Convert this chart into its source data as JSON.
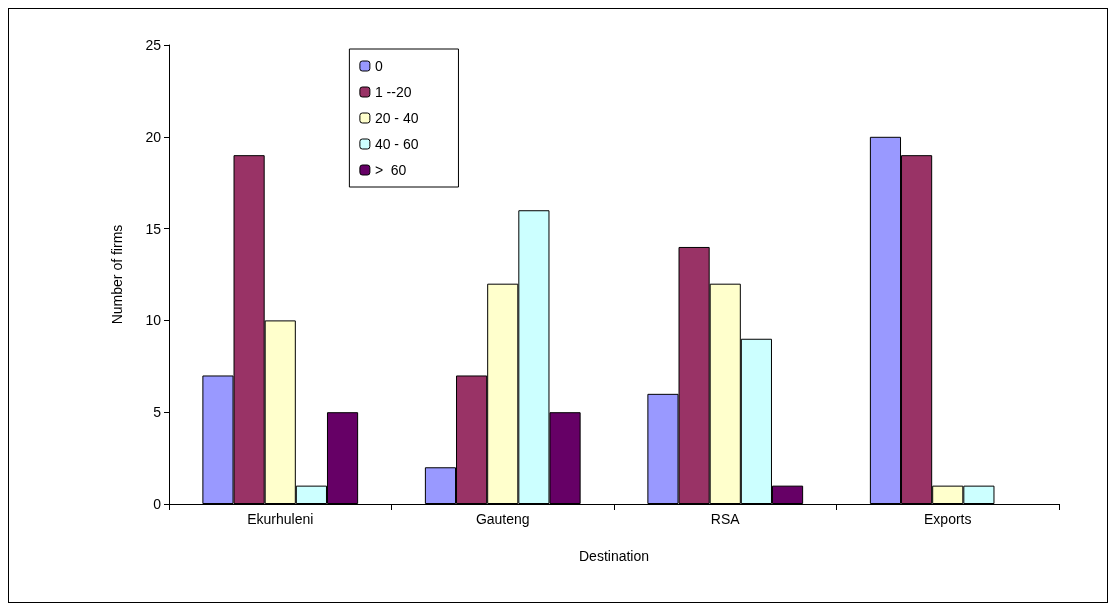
{
  "chart_data": {
    "type": "bar",
    "xlabel": "Destination",
    "ylabel": "Number of firms",
    "categories": [
      "Ekurhuleni",
      "Gauteng",
      "RSA",
      "Exports"
    ],
    "series": [
      {
        "name": "0",
        "color": "#9999ff",
        "values": [
          7,
          2,
          6,
          20
        ]
      },
      {
        "name": "1 --20",
        "color": "#993366",
        "values": [
          19,
          7,
          14,
          19
        ]
      },
      {
        "name": "20 - 40",
        "color": "#ffffcc",
        "values": [
          10,
          12,
          12,
          1
        ]
      },
      {
        "name": "40 - 60",
        "color": "#ccffff",
        "values": [
          1,
          16,
          9,
          1
        ]
      },
      {
        "name": ">  60",
        "color": "#660066",
        "values": [
          5,
          5,
          1,
          null
        ]
      }
    ],
    "ylim": [
      0,
      25
    ],
    "yticks": [
      0,
      5,
      10,
      15,
      20,
      25
    ],
    "grid": false,
    "legend": "top left"
  }
}
